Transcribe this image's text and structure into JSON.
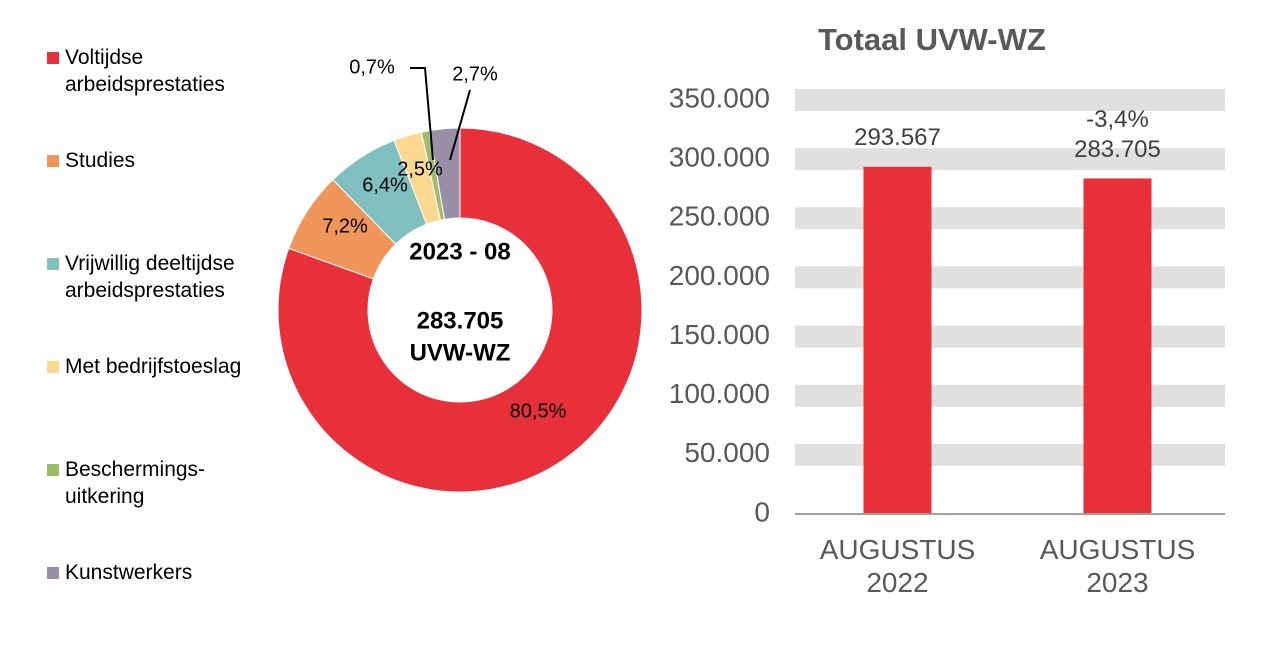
{
  "chart_data": [
    {
      "type": "donut",
      "categories": [
        "Voltijdse arbeidsprestaties",
        "Studies",
        "Vrijwillig deeltijdse arbeidsprestaties",
        "Met bedrijfstoeslag",
        "Beschermings-uitkering",
        "Kunstwerkers"
      ],
      "values": [
        80.5,
        7.2,
        6.4,
        2.5,
        0.7,
        2.7
      ],
      "value_labels": [
        "80,5%",
        "7,2%",
        "6,4%",
        "2,5%",
        "0,7%",
        "2,7%"
      ],
      "colors": [
        "#e8303a",
        "#f0955a",
        "#7fbfbf",
        "#fdd891",
        "#9dbb6a",
        "#9b8fa8"
      ],
      "annotations": [
        "2023 - 08",
        "283.705",
        "UVW-WZ"
      ],
      "legend": "left"
    },
    {
      "type": "bar",
      "title": "Totaal UVW-WZ",
      "categories": [
        "AUGUSTUS 2022",
        "AUGUSTUS 2023"
      ],
      "values": [
        293567,
        283705
      ],
      "value_labels": [
        "293.567",
        "283.705"
      ],
      "annotations": [
        "-3,4%"
      ],
      "color": "#e8303a",
      "ylim": [
        0,
        350000
      ],
      "yticks": [
        0,
        {
          "value": 50000,
          "label": "50.000"
        },
        {
          "value": 100000,
          "label": "100.000"
        },
        {
          "value": 150000,
          "label": "150.000"
        },
        {
          "value": 200000,
          "label": "200.000"
        },
        {
          "value": 250000,
          "label": "250.000"
        },
        {
          "value": 300000,
          "label": "300.000"
        },
        {
          "value": 350000,
          "label": "350.000"
        }
      ],
      "grid": true
    }
  ]
}
